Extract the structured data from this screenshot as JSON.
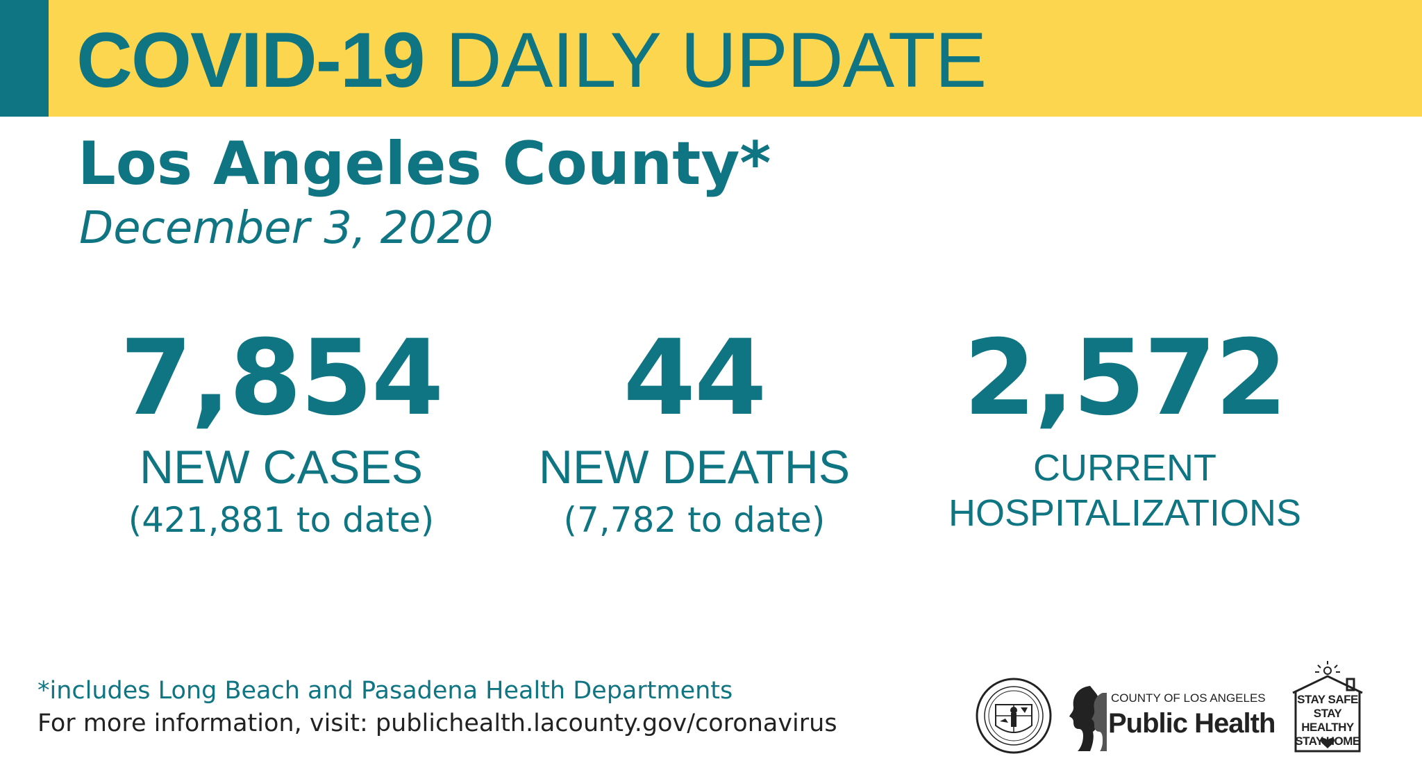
{
  "header": {
    "title_strong": "COVID-19",
    "title_light": "DAILY UPDATE"
  },
  "region": "Los Angeles County*",
  "date": "December 3, 2020",
  "stats": {
    "new_cases": {
      "value": "7,854",
      "label": "NEW CASES",
      "to_date": "(421,881 to date)"
    },
    "new_deaths": {
      "value": "44",
      "label": "NEW DEATHS",
      "to_date": "(7,782 to date)"
    },
    "hospitalizations": {
      "value": "2,572",
      "label_line1": "CURRENT",
      "label_line2": "HOSPITALIZATIONS"
    }
  },
  "footer": {
    "footnote": "*includes Long Beach and Pasadena Health Departments",
    "more_info": "For more information, visit: publichealth.lacounty.gov/coronavirus"
  },
  "logos": {
    "public_health_small": "COUNTY OF LOS ANGELES",
    "public_health_big": "Public Health",
    "stay_lines": [
      "STAY SAFE",
      "STAY HEALTHY",
      "STAY HOME"
    ]
  },
  "colors": {
    "teal": "#0f7582",
    "yellow": "#fdd64f",
    "footer_text": "#222222"
  }
}
